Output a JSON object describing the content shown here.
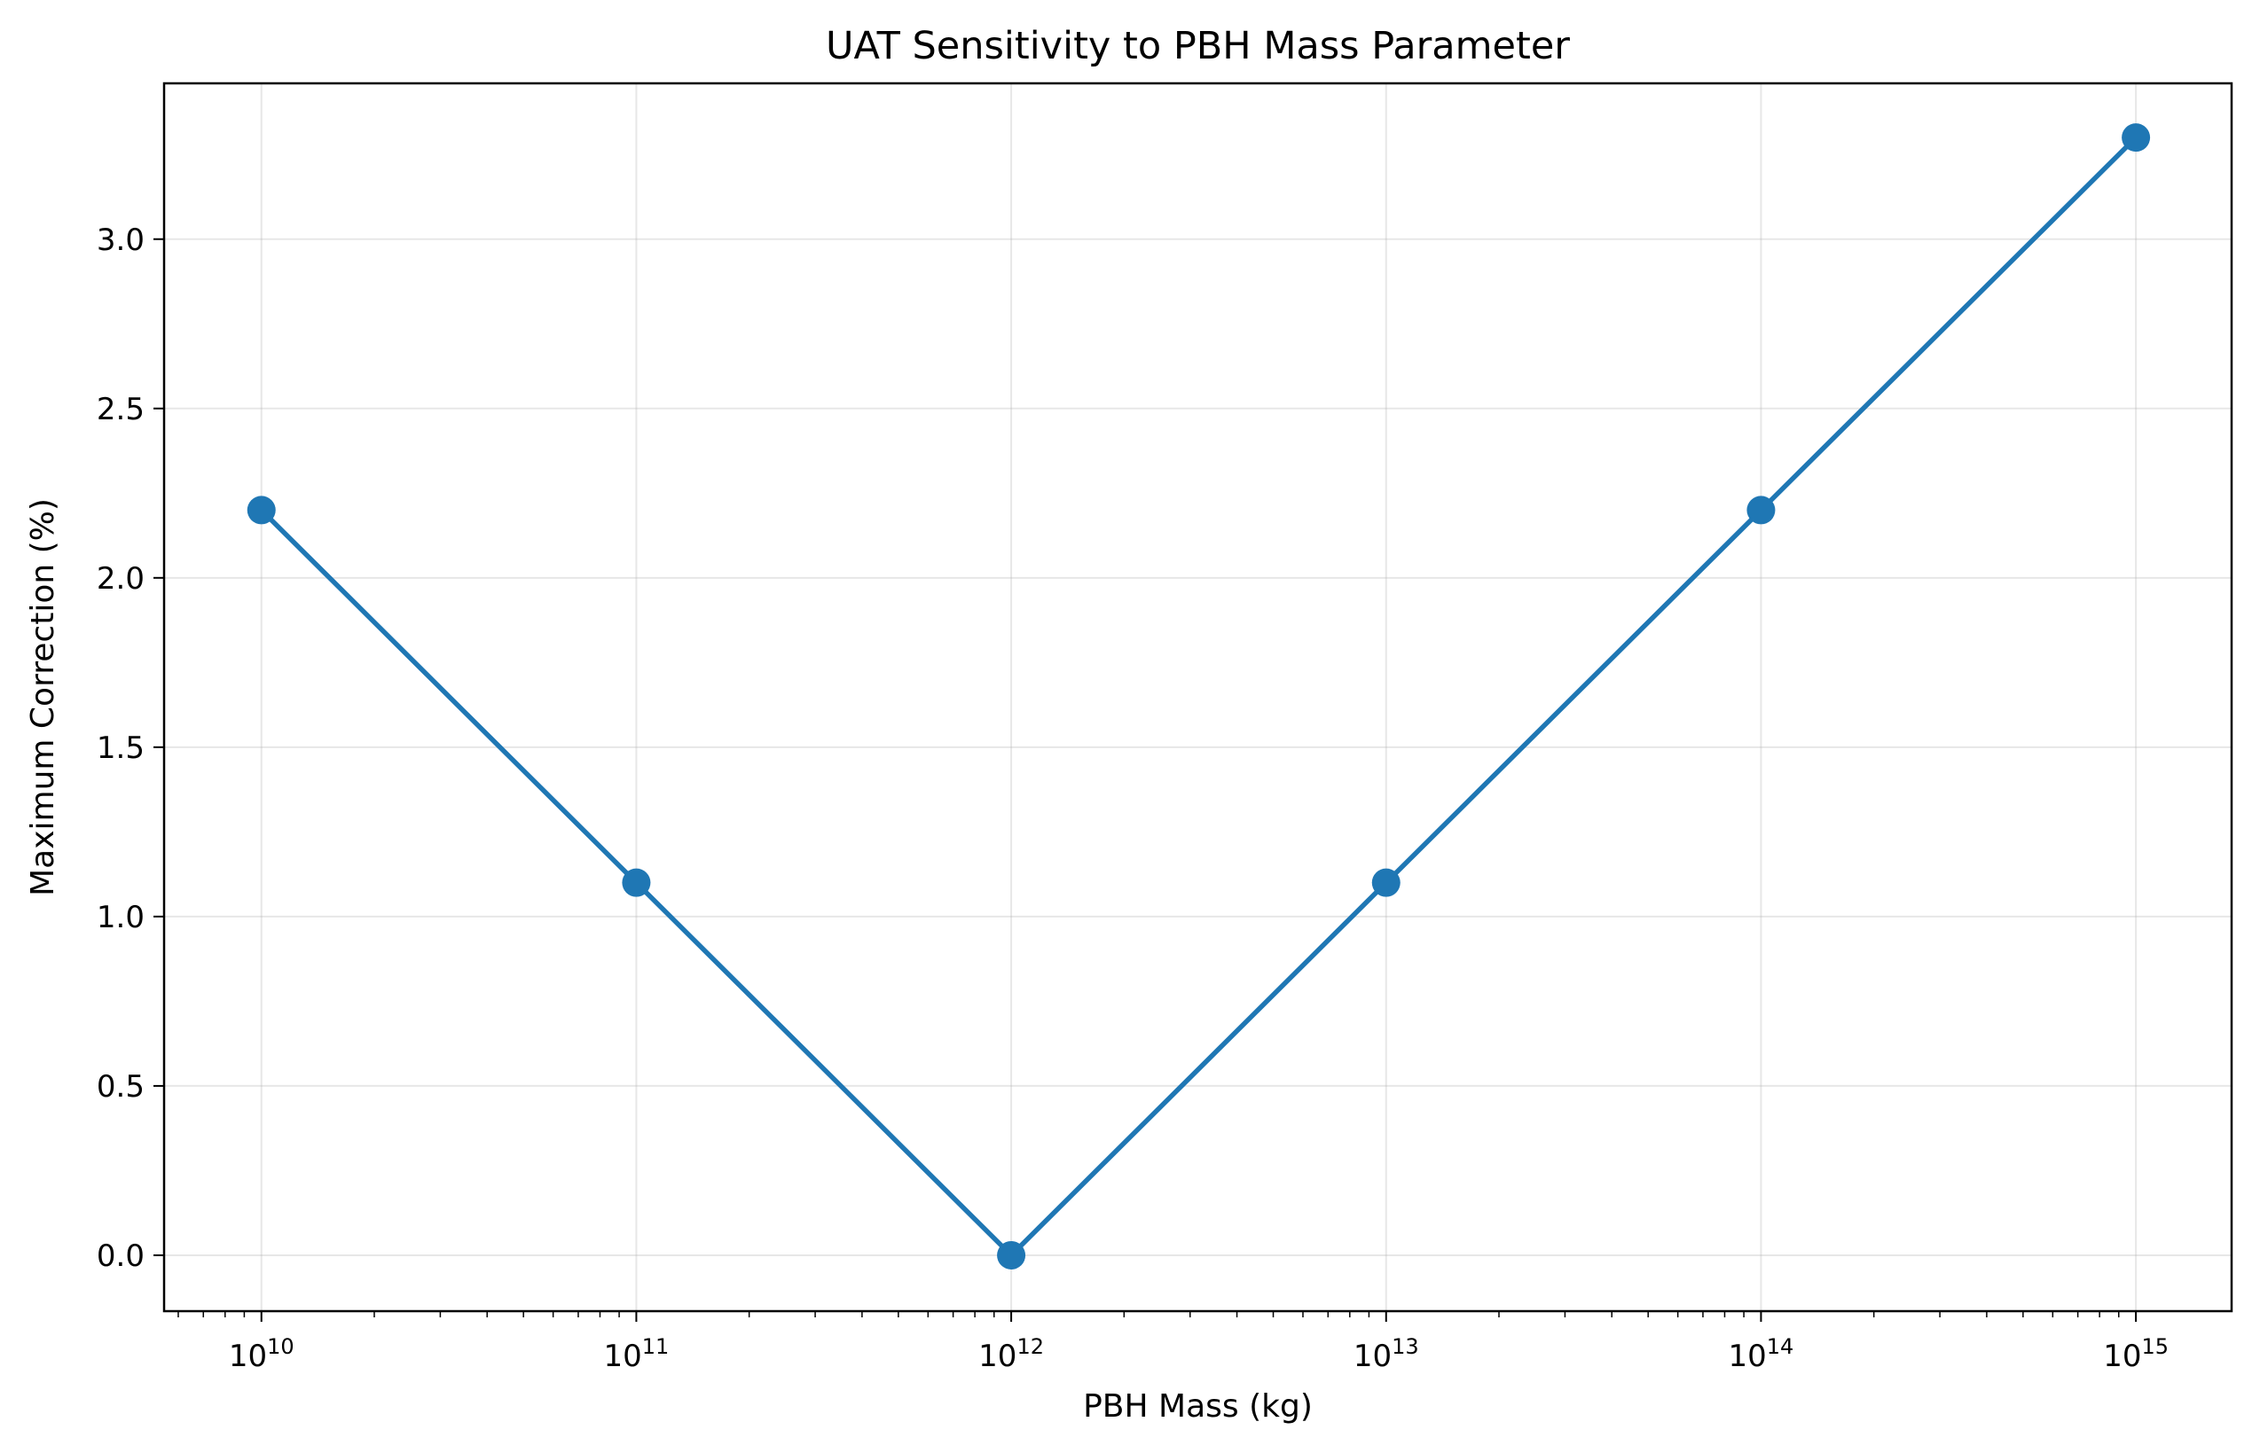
{
  "chart_data": {
    "type": "line",
    "title": "UAT Sensitivity to PBH Mass Parameter",
    "xlabel": "PBH Mass (kg)",
    "ylabel": "Maximum Correction (%)",
    "x_scale": "log",
    "xlim": [
      5500000000.0,
      1800000000000000.0
    ],
    "ylim": [
      -0.165,
      3.46
    ],
    "grid": true,
    "x_ticks": [
      {
        "base": "10",
        "exp": "10",
        "value": 10000000000.0
      },
      {
        "base": "10",
        "exp": "11",
        "value": 100000000000.0
      },
      {
        "base": "10",
        "exp": "12",
        "value": 1000000000000.0
      },
      {
        "base": "10",
        "exp": "13",
        "value": 10000000000000.0
      },
      {
        "base": "10",
        "exp": "14",
        "value": 100000000000000.0
      },
      {
        "base": "10",
        "exp": "15",
        "value": 1000000000000000.0
      }
    ],
    "y_ticks": [
      "0.0",
      "0.5",
      "1.0",
      "1.5",
      "2.0",
      "2.5",
      "3.0"
    ],
    "series": [
      {
        "color": "#1f77b4",
        "marker": "circle",
        "x": [
          10000000000.0,
          100000000000.0,
          1000000000000.0,
          10000000000000.0,
          100000000000000.0,
          1000000000000000.0
        ],
        "y": [
          2.2,
          1.1,
          0.0,
          1.1,
          2.2,
          3.3
        ]
      }
    ]
  }
}
